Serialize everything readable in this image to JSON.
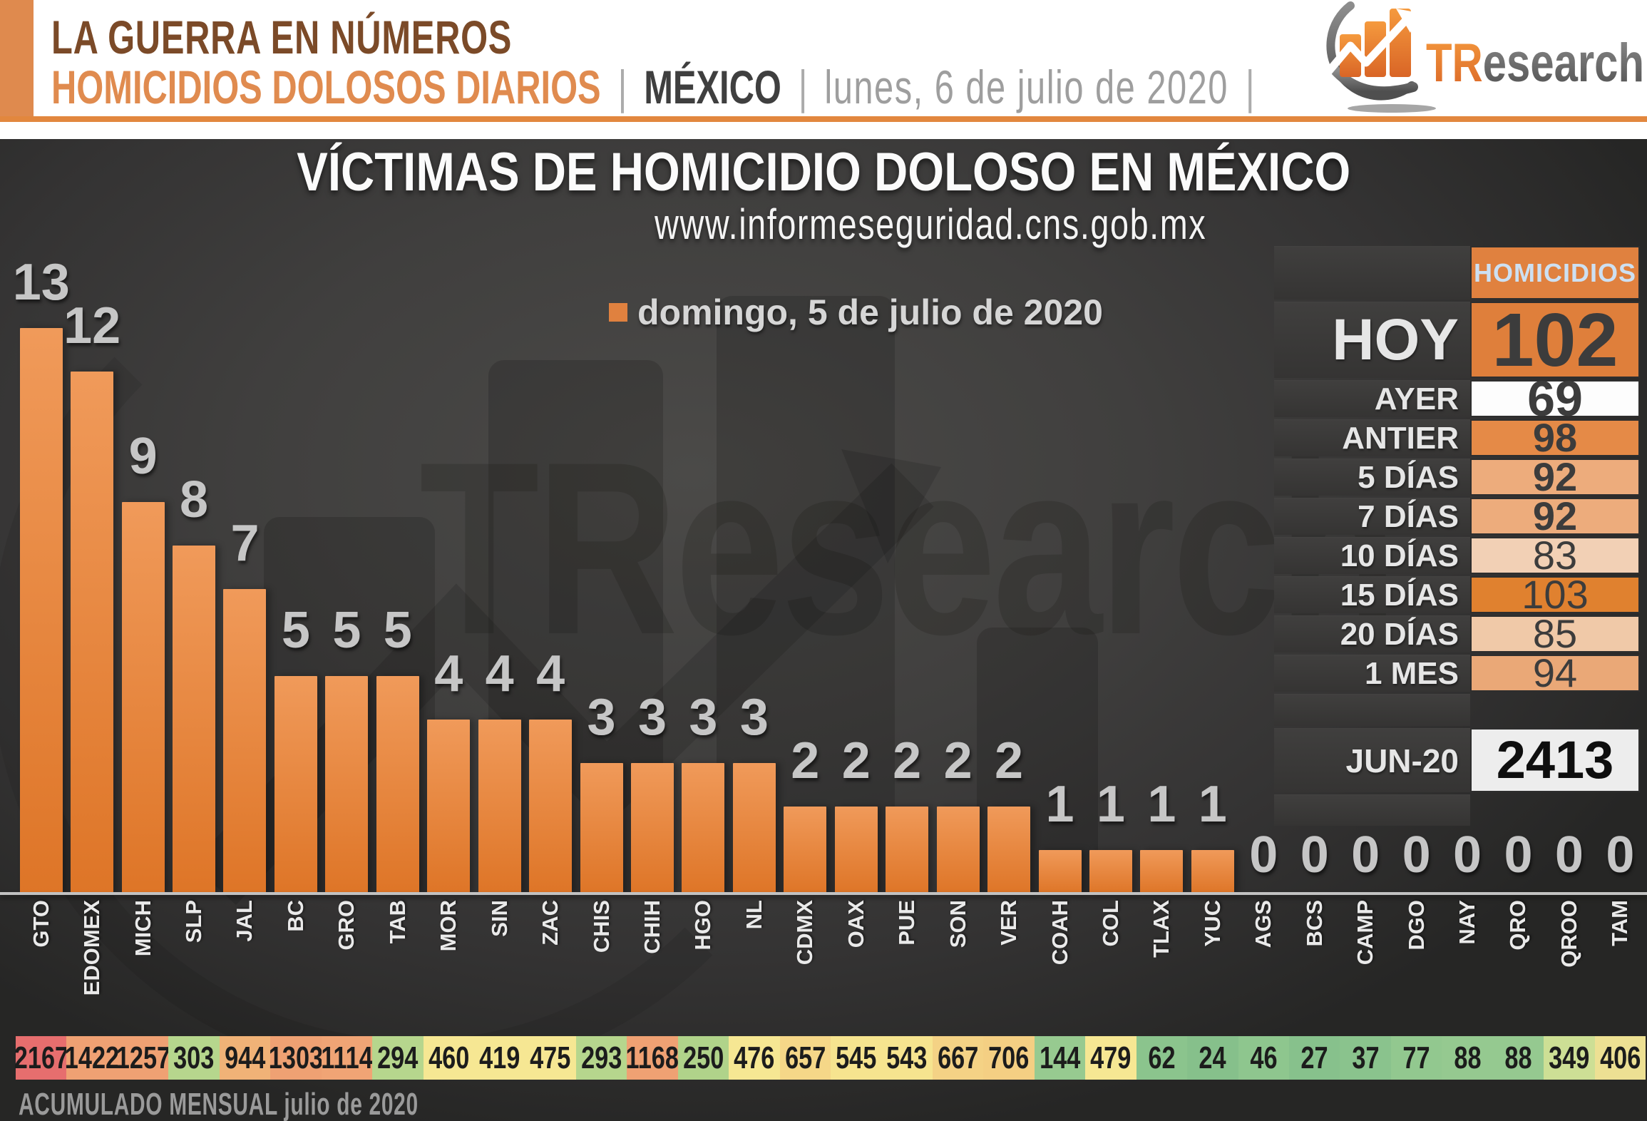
{
  "header": {
    "accent_color": "#DF8A4E",
    "line1": "LA GUERRA EN NÚMEROS",
    "line2": "HOMICIDIOS DOLOSOS DIARIOS",
    "separator": "|",
    "region": "MÉXICO",
    "date": "lunes, 6 de julio de 2020",
    "rule_color": "#E2873E"
  },
  "logo": {
    "part_orange": "TR",
    "part_gray": "esearch",
    "icon": "bar-chart-swoosh-logo"
  },
  "watermark": {
    "text": "TResearch"
  },
  "chart_data": {
    "type": "bar",
    "title": "VÍCTIMAS DE HOMICIDIO DOLOSO EN MÉXICO",
    "subtitle_url": "www.informeseguridad.cns.gob.mx",
    "legend_label": "domingo, 5 de julio de 2020",
    "legend_color": "#E0813F",
    "bar_gradient_top": "#F09A5A",
    "bar_gradient_bottom": "#DE7527",
    "value_label_color": "#C6C6C6",
    "axis_color": "#C2C2C2",
    "ylim": [
      0,
      13
    ],
    "grid": false,
    "legend_position": "top-center",
    "categories": [
      "GTO",
      "EDOMEX",
      "MICH",
      "SLP",
      "JAL",
      "BC",
      "GRO",
      "TAB",
      "MOR",
      "SIN",
      "ZAC",
      "CHIS",
      "CHIH",
      "HGO",
      "NL",
      "CDMX",
      "OAX",
      "PUE",
      "SON",
      "VER",
      "COAH",
      "COL",
      "TLAX",
      "YUC",
      "AGS",
      "BCS",
      "CAMP",
      "DGO",
      "NAY",
      "QRO",
      "QROO",
      "TAM"
    ],
    "values": [
      13,
      12,
      9,
      8,
      7,
      5,
      5,
      5,
      4,
      4,
      4,
      3,
      3,
      3,
      3,
      2,
      2,
      2,
      2,
      2,
      1,
      1,
      1,
      1,
      0,
      0,
      0,
      0,
      0,
      0,
      0,
      0
    ],
    "monthly_accumulated": {
      "caption": "ACUMULADO MENSUAL julio de 2020",
      "values": [
        2167,
        1422,
        1257,
        303,
        944,
        1303,
        1114,
        294,
        460,
        419,
        475,
        293,
        1168,
        250,
        476,
        657,
        545,
        543,
        667,
        706,
        144,
        479,
        62,
        24,
        46,
        27,
        37,
        77,
        88,
        88,
        349,
        406
      ],
      "cell_colors": [
        "#E66E6E",
        "#EFA173",
        "#EFA173",
        "#B6D68D",
        "#F0B277",
        "#EFA173",
        "#F0A475",
        "#B6D68D",
        "#F6E793",
        "#F6E793",
        "#F6E793",
        "#B6D68D",
        "#EFA173",
        "#B0D38A",
        "#F6E793",
        "#F5D788",
        "#F6E48F",
        "#F6E48F",
        "#F4D285",
        "#F4CF83",
        "#97CA90",
        "#F6E793",
        "#8BC48D",
        "#86C08B",
        "#8EC68E",
        "#87C18C",
        "#8AC38D",
        "#92C88F",
        "#95C990",
        "#95C990",
        "#CDDF95",
        "#EDE093"
      ]
    }
  },
  "summary_panel": {
    "header_label": "HOMICIDIOS",
    "header_bg": "#E0813F",
    "header_text_color": "#CDE0F2",
    "rows": [
      {
        "label": "HOY",
        "value": "102",
        "bg": "#DF7F3B",
        "size": "xl",
        "bold": true
      },
      {
        "label": "AYER",
        "value": "69",
        "bg": "#FDFDFD",
        "size": "lg",
        "bold": true
      },
      {
        "label": "ANTIER",
        "value": "98",
        "bg": "#E58A47",
        "size": "md",
        "bold": true
      },
      {
        "label": "5 DÍAS",
        "value": "92",
        "bg": "#EDAC7C",
        "size": "md",
        "bold": true
      },
      {
        "label": "7 DÍAS",
        "value": "92",
        "bg": "#EDAC7C",
        "size": "md",
        "bold": true
      },
      {
        "label": "10 DÍAS",
        "value": "83",
        "bg": "#F2D0B5",
        "size": "md",
        "bold": false
      },
      {
        "label": "15 DÍAS",
        "value": "103",
        "bg": "#E0812F",
        "size": "md",
        "bold": false
      },
      {
        "label": "20 DÍAS",
        "value": "85",
        "bg": "#F0C9A8",
        "size": "md",
        "bold": false
      },
      {
        "label": "1 MES",
        "value": "94",
        "bg": "#EAA877",
        "size": "md",
        "bold": false
      }
    ],
    "total_row": {
      "label": "JUN-20",
      "value": "2413",
      "bg": "#EDEDED",
      "size": "total",
      "bold": true
    }
  }
}
